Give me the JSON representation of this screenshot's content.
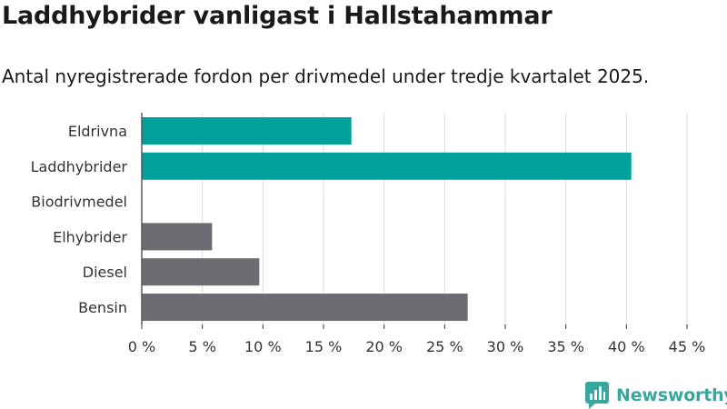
{
  "header": {
    "title": "Laddhybrider vanligast i Hallstahammar",
    "subtitle": "Antal nyregistrerade fordon per drivmedel under tredje kvartalet 2025."
  },
  "chart_data": {
    "type": "bar",
    "orientation": "horizontal",
    "categories": [
      "Eldrivna",
      "Laddhybrider",
      "Biodrivmedel",
      "Elhybrider",
      "Diesel",
      "Bensin"
    ],
    "values": [
      17.3,
      40.4,
      0,
      5.8,
      9.7,
      26.9
    ],
    "unit": "%",
    "xlim": [
      0,
      45
    ],
    "x_ticks": [
      0,
      5,
      10,
      15,
      20,
      25,
      30,
      35,
      40,
      45
    ],
    "x_tick_labels": [
      "0 %",
      "5 %",
      "10 %",
      "15 %",
      "20 %",
      "25 %",
      "30 %",
      "35 %",
      "40 %",
      "45 %"
    ],
    "grid": true,
    "colors": {
      "Eldrivna": "#00a19a",
      "Laddhybrider": "#00a19a",
      "Biodrivmedel": "#00a19a",
      "Elhybrider": "#6d6c73",
      "Diesel": "#6d6c73",
      "Bensin": "#6d6c73"
    }
  },
  "brand": {
    "name": "Newsworthy",
    "icon": "newsworthy-logo-icon",
    "color": "#3aa79f"
  }
}
